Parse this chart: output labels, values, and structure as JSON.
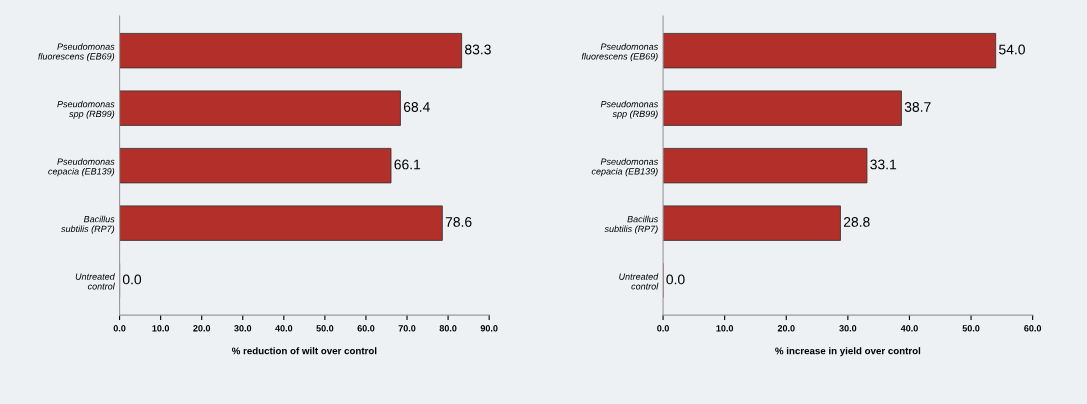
{
  "chart_data": [
    {
      "type": "bar",
      "orientation": "horizontal",
      "xlabel": "% reduction of wilt over control",
      "categories": [
        "Pseudomonas\nfluorescens (EB69)",
        "Pseudomonas\nspp (RB99)",
        "Pseudomonas\ncepacia (EB139)",
        "Bacillus\nsubtilis (RP7)",
        "Untreated\ncontrol"
      ],
      "values": [
        83.3,
        68.4,
        66.1,
        78.6,
        0.0
      ],
      "value_labels": [
        "83.3",
        "68.4",
        "66.1",
        "78.6",
        "0.0"
      ],
      "color": "#b3302a",
      "xlim": [
        0,
        90
      ],
      "xticks": [
        {
          "value": 0,
          "label": "0.0"
        },
        {
          "value": 10,
          "label": "10.0"
        },
        {
          "value": 20,
          "label": "20.0"
        },
        {
          "value": 30,
          "label": "30.0"
        },
        {
          "value": 40,
          "label": "40.0"
        },
        {
          "value": 50,
          "label": "50.0"
        },
        {
          "value": 60,
          "label": "60.0"
        },
        {
          "value": 70,
          "label": "70.0"
        },
        {
          "value": 80,
          "label": "80.0"
        },
        {
          "value": 90,
          "label": "90.0"
        }
      ]
    },
    {
      "type": "bar",
      "orientation": "horizontal",
      "xlabel": "% increase in yield over control",
      "categories": [
        "Pseudomonas\nfluorescens (EB69)",
        "Pseudomonas\nspp (RB99)",
        "Pseudomonas\ncepacia (EB139)",
        "Bacillus\nsubtilis (RP7)",
        "Untreated\ncontrol"
      ],
      "values": [
        54.0,
        38.7,
        33.1,
        28.8,
        0.0
      ],
      "value_labels": [
        "54.0",
        "38.7",
        "33.1",
        "28.8",
        "0.0"
      ],
      "color": "#b3302a",
      "xlim": [
        0,
        60
      ],
      "xticks": [
        {
          "value": 0,
          "label": "0.0"
        },
        {
          "value": 10,
          "label": "10.0"
        },
        {
          "value": 20,
          "label": "20.0"
        },
        {
          "value": 30,
          "label": "30.0"
        },
        {
          "value": 40,
          "label": "40.0"
        },
        {
          "value": 50,
          "label": "50.0"
        },
        {
          "value": 60,
          "label": "60.0"
        }
      ]
    }
  ]
}
